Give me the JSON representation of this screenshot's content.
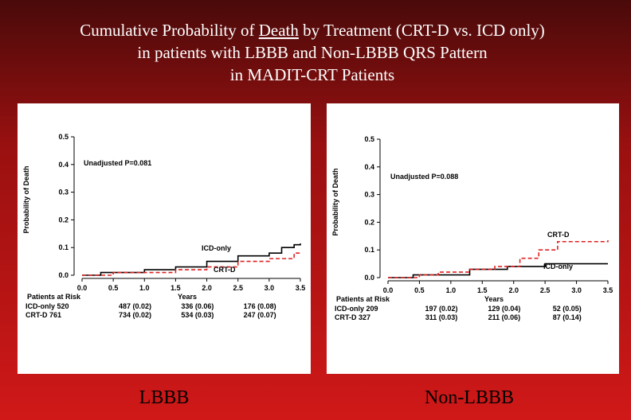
{
  "title": [
    "Cumulative Probability of ",
    "Death",
    " by Treatment (CRT-D vs. ICD only)",
    "in patients with LBBB and Non-LBBB QRS Pattern",
    "in MADIT-CRT Patients"
  ],
  "chart_data": [
    {
      "type": "line",
      "step": true,
      "caption": "LBBB",
      "y_label": "Probability of Death",
      "x_label": "Years",
      "annotations": [
        "Unadjusted P=0.081"
      ],
      "xlim": [
        0,
        3.5
      ],
      "ylim": [
        0,
        0.5
      ],
      "xticks": [
        {
          "value": 0,
          "label": "0.0"
        },
        0.5,
        {
          "value": 1,
          "label": "1.0"
        },
        1.5,
        {
          "value": 2,
          "label": "2.0"
        },
        2.5,
        {
          "value": 3,
          "label": "3.0"
        },
        3.5
      ],
      "yticks": [
        {
          "value": 0,
          "label": "0.0"
        },
        0.1,
        0.2,
        0.3,
        0.4,
        0.5
      ],
      "series": [
        {
          "name": "ICD-only",
          "color": "#000000",
          "dash": false,
          "x": [
            0,
            0.3,
            1.0,
            1.5,
            2.0,
            2.5,
            3.0,
            3.2,
            3.4,
            3.5
          ],
          "values": [
            0,
            0.01,
            0.02,
            0.03,
            0.05,
            0.07,
            0.08,
            0.1,
            0.11,
            0.115
          ]
        },
        {
          "name": "CRT-D",
          "color": "#e02020",
          "dash": true,
          "x": [
            0,
            0.5,
            1.5,
            2.0,
            2.5,
            3.0,
            3.4,
            3.5
          ],
          "values": [
            0,
            0.01,
            0.02,
            0.03,
            0.05,
            0.06,
            0.08,
            0.085
          ]
        }
      ],
      "risk_table": {
        "header": "Patients at Risk",
        "rows": [
          {
            "label": "ICD-only 520",
            "cells": [
              "487 (0.02)",
              "336 (0.06)",
              "176 (0.08)"
            ]
          },
          {
            "label": "CRT-D 761",
            "cells": [
              "734 (0.02)",
              "534 (0.03)",
              "247 (0.07)"
            ]
          }
        ]
      }
    },
    {
      "type": "line",
      "step": true,
      "caption": "Non-LBBB",
      "y_label": "Probability of Death",
      "x_label": "Years",
      "annotations": [
        "Unadjusted P=0.088"
      ],
      "xlim": [
        0,
        3.5
      ],
      "ylim": [
        0,
        0.5
      ],
      "xticks": [
        {
          "value": 0,
          "label": "0.0"
        },
        0.5,
        {
          "value": 1,
          "label": "1.0"
        },
        1.5,
        {
          "value": 2,
          "label": "2.0"
        },
        2.5,
        {
          "value": 3,
          "label": "3.0"
        },
        3.5
      ],
      "yticks": [
        {
          "value": 0,
          "label": "0.0"
        },
        0.1,
        0.2,
        0.3,
        0.4,
        0.5
      ],
      "series": [
        {
          "name": "ICD-only",
          "color": "#000000",
          "dash": false,
          "x": [
            0,
            0.4,
            1.3,
            1.9,
            2.5,
            3.5
          ],
          "values": [
            0,
            0.01,
            0.03,
            0.04,
            0.05,
            0.05
          ]
        },
        {
          "name": "CRT-D",
          "color": "#e02020",
          "dash": true,
          "x": [
            0,
            0.5,
            0.8,
            1.3,
            1.7,
            2.1,
            2.4,
            2.7,
            3.5
          ],
          "values": [
            0,
            0.01,
            0.02,
            0.03,
            0.04,
            0.07,
            0.1,
            0.13,
            0.135
          ]
        }
      ],
      "risk_table": {
        "header": "Patients at Risk",
        "rows": [
          {
            "label": "ICD-only 209",
            "cells": [
              "197 (0.02)",
              "129 (0.04)",
              "52 (0.05)"
            ]
          },
          {
            "label": "CRT-D 327",
            "cells": [
              "311 (0.03)",
              "211 (0.06)",
              "87 (0.14)"
            ]
          }
        ]
      }
    }
  ]
}
